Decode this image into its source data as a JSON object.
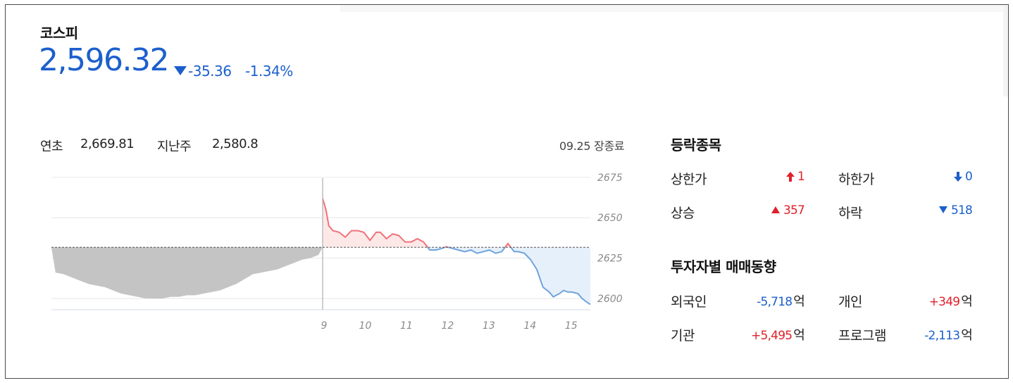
{
  "index": {
    "name": "코스피",
    "price": "2,596.32",
    "change": "-35.36",
    "change_pct": "-1.34%",
    "direction": "down"
  },
  "reference": {
    "year_start_label": "연초",
    "year_start_value": "2,669.81",
    "last_week_label": "지난주",
    "last_week_value": "2,580.8"
  },
  "status": "09.25 장종료",
  "chart_data": {
    "type": "area",
    "x_tick_labels": [
      "9",
      "10",
      "11",
      "12",
      "13",
      "14",
      "15"
    ],
    "y_tick_labels": [
      "2675",
      "2650",
      "2625",
      "2600"
    ],
    "ylim": [
      2593,
      2678
    ],
    "previous_close": 2631.68,
    "series": [
      {
        "x": [
          -6.6,
          -6.5,
          -6.3,
          -6.1,
          -5.9,
          -5.7,
          -5.5,
          -5.3,
          -5.1,
          -4.9,
          -4.7,
          -4.5,
          -4.3,
          -4.1,
          -3.9,
          -3.7,
          -3.5,
          -3.3,
          -3.1,
          -2.9,
          -2.7,
          -2.5,
          -2.3,
          -2.1,
          -1.9,
          -1.7,
          -1.5,
          -1.3,
          -1.1,
          -0.9,
          -0.7,
          -0.5,
          -0.3,
          -0.1,
          0
        ],
        "values": [
          2631.7,
          2616,
          2615,
          2613,
          2611,
          2609,
          2608,
          2607,
          2605,
          2603,
          2602,
          2601,
          2600,
          2600,
          2600,
          2601,
          2601,
          2602,
          2602,
          2603,
          2604,
          2605,
          2607,
          2609,
          2612,
          2615,
          2616,
          2617,
          2618,
          2620,
          2622,
          2624,
          2625,
          2627,
          2631.7
        ]
      },
      {
        "x": [
          9.0,
          9.08,
          9.15,
          9.25,
          9.4,
          9.55,
          9.7,
          9.85,
          10.0,
          10.15,
          10.3,
          10.4,
          10.55,
          10.7,
          10.85,
          11.0,
          11.15,
          11.3,
          11.45,
          11.6,
          11.75,
          11.9,
          12.0,
          12.15,
          12.3,
          12.45,
          12.6,
          12.75,
          12.9,
          13.05,
          13.2,
          13.35,
          13.5,
          13.65,
          13.75,
          13.9,
          14.05,
          14.2,
          14.35,
          14.5,
          14.6,
          14.75,
          14.85,
          14.95,
          15.05,
          15.2,
          15.3,
          15.4,
          15.5
        ],
        "values": [
          2662,
          2655,
          2645,
          2642,
          2641,
          2638,
          2642,
          2642,
          2641,
          2636,
          2641,
          2641,
          2637,
          2640,
          2639,
          2635,
          2635,
          2637,
          2635,
          2630,
          2630,
          2631,
          2632,
          2631,
          2630,
          2629,
          2630,
          2628,
          2629,
          2630,
          2628,
          2629,
          2634,
          2629,
          2629,
          2628,
          2624,
          2618,
          2607,
          2604,
          2601,
          2603,
          2605,
          2604,
          2604,
          2603,
          2600,
          2598,
          2596.3
        ]
      }
    ],
    "grid": true
  },
  "advance_decline": {
    "title": "등락종목",
    "upper_limit_label": "상한가",
    "upper_limit_value": "1",
    "lower_limit_label": "하한가",
    "lower_limit_value": "0",
    "advance_label": "상승",
    "advance_value": "357",
    "decline_label": "하락",
    "decline_value": "518"
  },
  "investor_flow": {
    "title": "투자자별 매매동향",
    "unit": "억",
    "foreign_label": "외국인",
    "foreign_value": "-5,718",
    "individual_label": "개인",
    "individual_value": "+349",
    "institution_label": "기관",
    "institution_value": "+5,495",
    "program_label": "프로그램",
    "program_value": "-2,113"
  },
  "colors": {
    "up": "#e0202a",
    "down": "#1c5fcc",
    "grey_area": "#c4c4c4"
  }
}
